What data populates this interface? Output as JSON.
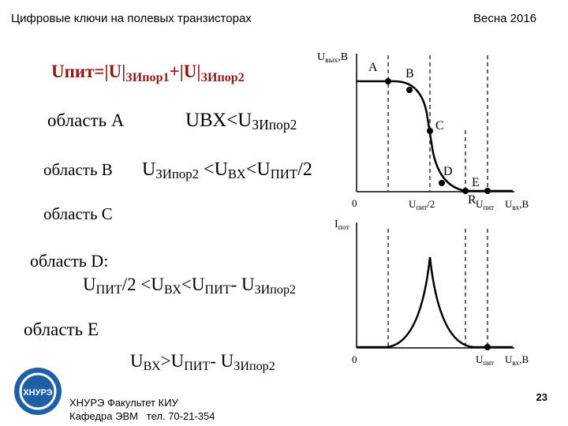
{
  "header": {
    "title": "Цифровые ключи на полевых транзисторах",
    "term": "Весна 2016"
  },
  "formula": [
    "Uпит=|U|",
    "ЗИпор1",
    "+|U|",
    "ЗИпор2"
  ],
  "regions": [
    {
      "name": "область A",
      "condition": [
        "UВХ<U",
        "ЗИпор2"
      ]
    },
    {
      "name": "область B",
      "condition": [
        "U",
        "ЗИпор2",
        " <U",
        "ВХ",
        "<U",
        "ПИТ",
        "/2"
      ]
    },
    {
      "name": "область C"
    },
    {
      "name": "область D:",
      "condition": [
        "U",
        "ПИТ",
        "/2 <U",
        "ВХ",
        "<U",
        "ПИТ",
        "- U",
        "ЗИпор2"
      ]
    },
    {
      "name": "область E",
      "condition": [
        "U",
        "ВХ",
        ">U",
        "ПИТ",
        "- U",
        "ЗИпор2"
      ]
    }
  ],
  "top_graph": {
    "y_label": [
      "U",
      "вых",
      ",В"
    ],
    "origin": "0",
    "points": [
      "A",
      "B",
      "C",
      "D",
      "E"
    ],
    "extra": "R",
    "x_ticks": [
      [
        "U",
        "пит",
        "/2"
      ],
      [
        "U",
        "пит"
      ]
    ],
    "x_label": [
      "U",
      "вх",
      ",В"
    ]
  },
  "bottom_graph": {
    "y_label": [
      "I",
      "пот"
    ],
    "origin": "0",
    "x_ticks": [
      [
        "U",
        "пит"
      ]
    ],
    "x_label": [
      "U",
      "вх",
      ",В"
    ]
  },
  "footer": {
    "logo": "ХНУРЭ",
    "line1": "ХНУРЭ Факультет КИУ",
    "line2": "Кафедра ЭВМ   тел. 70-21-354",
    "page": "23"
  }
}
